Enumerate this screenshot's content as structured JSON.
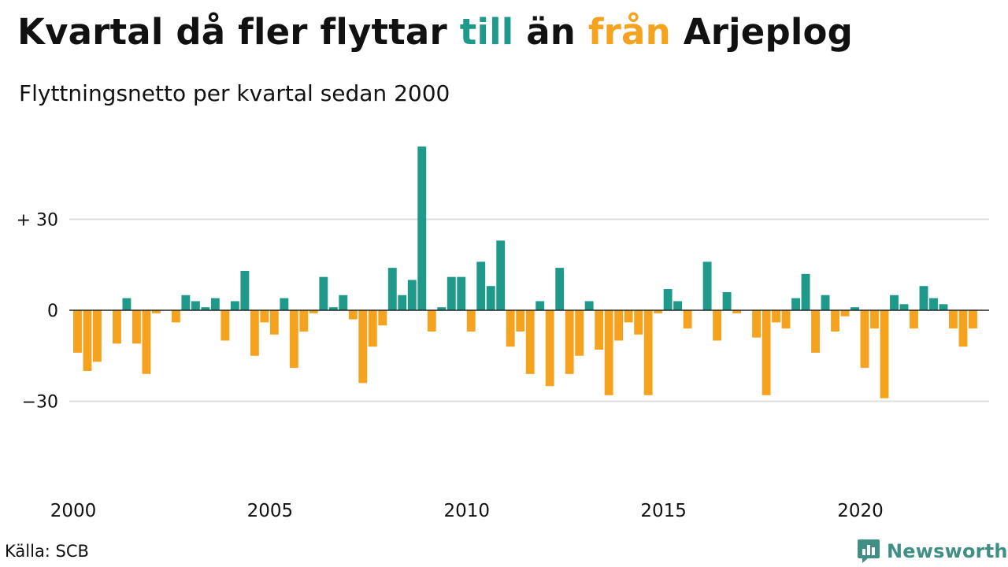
{
  "header": {
    "title_parts": [
      "Kvartal då fler flyttar ",
      "till",
      " än ",
      "från",
      " Arjeplog"
    ],
    "subtitle": "Flyttningsnetto per kvartal sedan 2000"
  },
  "footer": {
    "source": "Källa: SCB",
    "brand": "Newsworthy"
  },
  "colors": {
    "positive": "#1f9a8a",
    "negative": "#f5a31e",
    "grid": "#dddddd",
    "zero": "#222222",
    "text": "#111111",
    "brand": "#3f8f84"
  },
  "icons": {
    "brand_logo": "bar-chart-speech-bubble-icon"
  },
  "chart_data": {
    "type": "bar",
    "title": "Kvartal då fler flyttar till än från Arjeplog",
    "subtitle": "Flyttningsnetto per kvartal sedan 2000",
    "xlabel": "",
    "ylabel": "",
    "ylim": [
      -55,
      55
    ],
    "y_ticks": [
      {
        "value": 30,
        "label": "+ 30"
      },
      {
        "value": 0,
        "label": "0"
      },
      {
        "value": -30,
        "label": "−30"
      }
    ],
    "x_ticks": [
      {
        "year": 2000,
        "label": "2000"
      },
      {
        "year": 2005,
        "label": "2005"
      },
      {
        "year": 2010,
        "label": "2010"
      },
      {
        "year": 2015,
        "label": "2015"
      },
      {
        "year": 2020,
        "label": "2020"
      }
    ],
    "start": "2000 Q1",
    "end": "2023 Q1",
    "categories": [
      "2000 Q1",
      "2000 Q2",
      "2000 Q3",
      "2000 Q4",
      "2001 Q1",
      "2001 Q2",
      "2001 Q3",
      "2001 Q4",
      "2002 Q1",
      "2002 Q2",
      "2002 Q3",
      "2002 Q4",
      "2003 Q1",
      "2003 Q2",
      "2003 Q3",
      "2003 Q4",
      "2004 Q1",
      "2004 Q2",
      "2004 Q3",
      "2004 Q4",
      "2005 Q1",
      "2005 Q2",
      "2005 Q3",
      "2005 Q4",
      "2006 Q1",
      "2006 Q2",
      "2006 Q3",
      "2006 Q4",
      "2007 Q1",
      "2007 Q2",
      "2007 Q3",
      "2007 Q4",
      "2008 Q1",
      "2008 Q2",
      "2008 Q3",
      "2008 Q4",
      "2009 Q1",
      "2009 Q2",
      "2009 Q3",
      "2009 Q4",
      "2010 Q1",
      "2010 Q2",
      "2010 Q3",
      "2010 Q4",
      "2011 Q1",
      "2011 Q2",
      "2011 Q3",
      "2011 Q4",
      "2012 Q1",
      "2012 Q2",
      "2012 Q3",
      "2012 Q4",
      "2013 Q1",
      "2013 Q2",
      "2013 Q3",
      "2013 Q4",
      "2014 Q1",
      "2014 Q2",
      "2014 Q3",
      "2014 Q4",
      "2015 Q1",
      "2015 Q2",
      "2015 Q3",
      "2015 Q4",
      "2016 Q1",
      "2016 Q2",
      "2016 Q3",
      "2016 Q4",
      "2017 Q1",
      "2017 Q2",
      "2017 Q3",
      "2017 Q4",
      "2018 Q1",
      "2018 Q2",
      "2018 Q3",
      "2018 Q4",
      "2019 Q1",
      "2019 Q2",
      "2019 Q3",
      "2019 Q4",
      "2020 Q1",
      "2020 Q2",
      "2020 Q3",
      "2020 Q4",
      "2021 Q1",
      "2021 Q2",
      "2021 Q3",
      "2021 Q4",
      "2022 Q1",
      "2022 Q2",
      "2022 Q3",
      "2022 Q4",
      "2023 Q1"
    ],
    "values": [
      -14,
      -20,
      -17,
      0,
      -11,
      4,
      -11,
      -21,
      -1,
      0,
      -4,
      5,
      3,
      1,
      4,
      -10,
      3,
      13,
      -15,
      -4,
      -8,
      4,
      -19,
      -7,
      -1,
      11,
      1,
      5,
      -3,
      -24,
      -12,
      -5,
      14,
      5,
      10,
      54,
      -7,
      1,
      11,
      11,
      -7,
      16,
      8,
      23,
      -12,
      -7,
      -21,
      3,
      -25,
      14,
      -21,
      -15,
      3,
      -13,
      -28,
      -10,
      -4,
      -8,
      -28,
      -1,
      7,
      3,
      -6,
      0,
      16,
      -10,
      6,
      -1,
      0,
      -9,
      -28,
      -4,
      -6,
      4,
      12,
      -14,
      5,
      -7,
      -2,
      1,
      -19,
      -6,
      -29,
      5,
      2,
      -6,
      8,
      4,
      2,
      -6,
      -12,
      -6,
      0
    ]
  }
}
